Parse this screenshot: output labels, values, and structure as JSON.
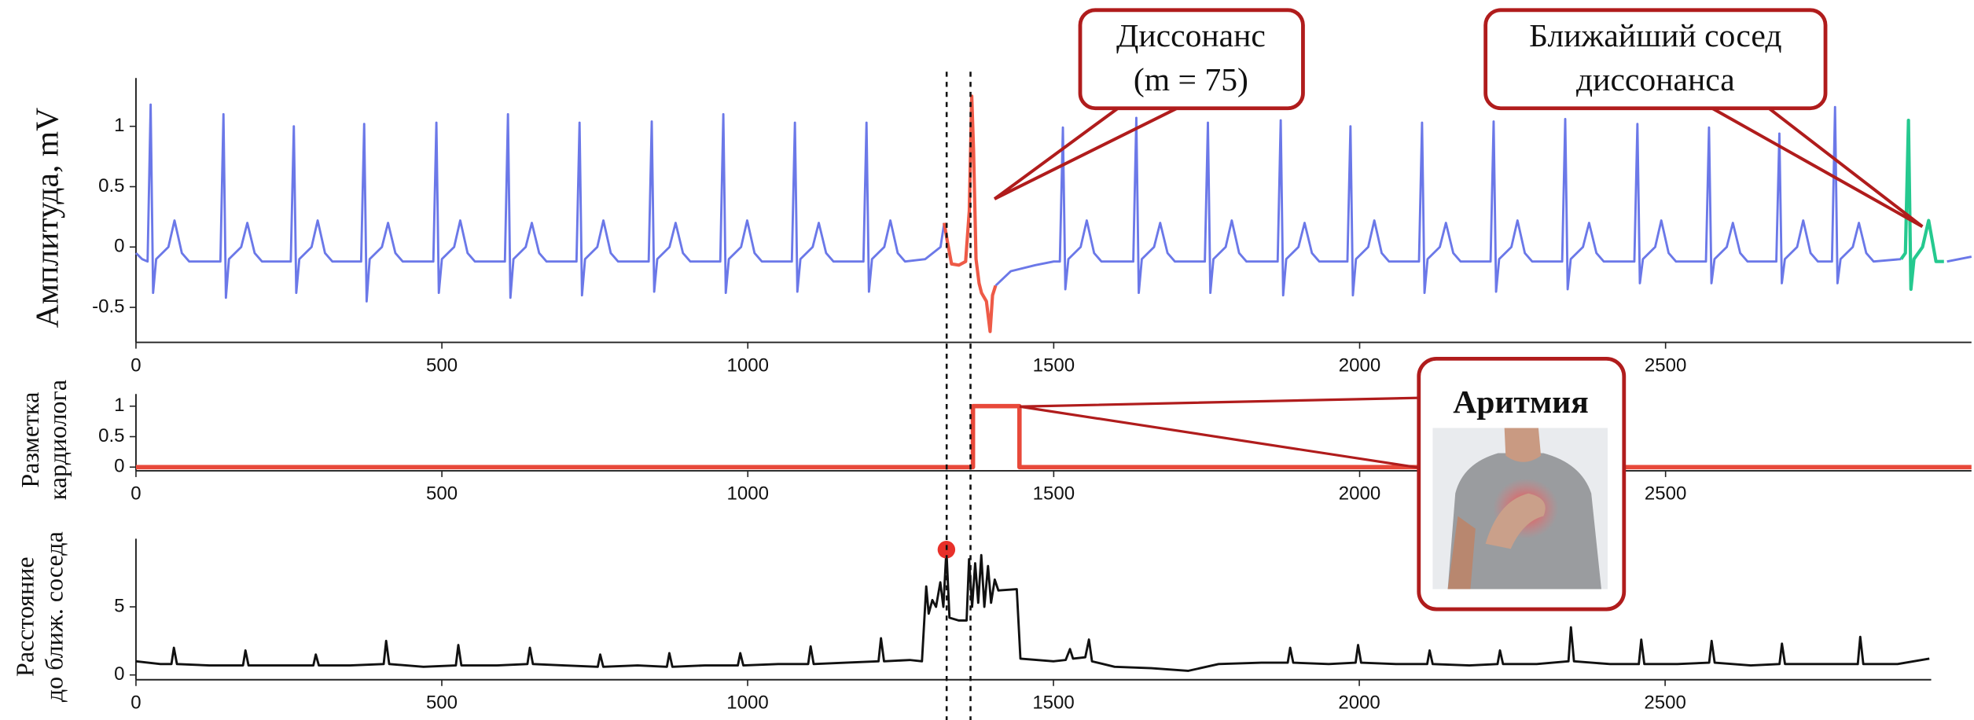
{
  "chart_data": [
    {
      "type": "line",
      "ylabel": [
        "Амплитуда, mV"
      ],
      "xlim": [
        0,
        3000
      ],
      "ylim": [
        -0.79,
        1.4
      ],
      "xticks": [
        0,
        500,
        1000,
        1500,
        2000,
        2500
      ],
      "yticks": [
        -0.5,
        0,
        0.5,
        1
      ],
      "series": [
        {
          "color": "#6b78e8",
          "x": [
            0,
            10,
            19,
            24,
            28,
            33,
            53,
            63,
            75,
            87,
            138,
            143,
            147,
            152,
            172,
            182,
            194,
            206,
            253,
            258,
            262,
            267,
            287,
            297,
            309,
            321,
            368,
            373,
            377,
            382,
            402,
            412,
            424,
            436,
            486,
            491,
            495,
            500,
            520,
            530,
            542,
            554,
            603,
            608,
            612,
            617,
            637,
            647,
            659,
            671,
            720,
            725,
            729,
            734,
            754,
            764,
            776,
            788,
            838,
            843,
            847,
            852,
            872,
            882,
            894,
            906,
            955,
            960,
            964,
            969,
            989,
            999,
            1011,
            1023,
            1072,
            1077,
            1081,
            1086,
            1106,
            1116,
            1128,
            1140,
            1189,
            1194,
            1198,
            1203,
            1223,
            1233,
            1245,
            1257,
            1290,
            1315,
            1321,
            null,
            1405,
            1430,
            1470,
            1500,
            1510,
            1515,
            1519,
            1524,
            1544,
            1554,
            1566,
            1578,
            1630,
            1635,
            1639,
            1644,
            1664,
            1674,
            1686,
            1698,
            1747,
            1752,
            1756,
            1761,
            1781,
            1791,
            1803,
            1815,
            1866,
            1871,
            1875,
            1880,
            1900,
            1910,
            1922,
            1934,
            1980,
            1985,
            1989,
            1994,
            2014,
            2024,
            2036,
            2048,
            2097,
            2102,
            2106,
            2111,
            2131,
            2141,
            2153,
            2165,
            2214,
            2219,
            2223,
            2228,
            2248,
            2258,
            2270,
            2282,
            2331,
            2336,
            2340,
            2345,
            2365,
            2375,
            2387,
            2399,
            2449,
            2454,
            2458,
            2463,
            2483,
            2493,
            2505,
            2517,
            2566,
            2571,
            2575,
            2580,
            2600,
            2610,
            2622,
            2634,
            2681,
            2686,
            2690,
            2695,
            2715,
            2725,
            2737,
            2749,
            2772,
            2777,
            2781,
            2786,
            2806,
            2816,
            2828,
            2840,
            2885,
            null,
            2960,
            3000
          ],
          "values": [
            -0.05,
            -0.1,
            -0.12,
            1.18,
            -0.38,
            -0.1,
            0,
            0.22,
            -0.05,
            -0.12,
            -0.12,
            1.1,
            -0.42,
            -0.1,
            0,
            0.2,
            -0.05,
            -0.12,
            -0.12,
            1.0,
            -0.38,
            -0.1,
            0,
            0.22,
            -0.05,
            -0.12,
            -0.12,
            1.02,
            -0.45,
            -0.1,
            0,
            0.2,
            -0.05,
            -0.12,
            -0.12,
            1.03,
            -0.38,
            -0.1,
            0,
            0.22,
            -0.05,
            -0.12,
            -0.12,
            1.1,
            -0.42,
            -0.1,
            0,
            0.2,
            -0.05,
            -0.12,
            -0.12,
            1.03,
            -0.4,
            -0.1,
            0,
            0.22,
            -0.05,
            -0.12,
            -0.12,
            1.04,
            -0.37,
            -0.1,
            0,
            0.2,
            -0.05,
            -0.12,
            -0.12,
            1.1,
            -0.38,
            -0.1,
            0,
            0.22,
            -0.05,
            -0.12,
            -0.12,
            1.03,
            -0.37,
            -0.1,
            0,
            0.2,
            -0.05,
            -0.12,
            -0.12,
            1.03,
            -0.37,
            -0.1,
            0,
            0.22,
            -0.05,
            -0.12,
            -0.1,
            0.0,
            0.2,
            null,
            -0.32,
            -0.2,
            -0.15,
            -0.12,
            -0.12,
            0.99,
            -0.35,
            -0.1,
            0,
            0.22,
            -0.05,
            -0.12,
            -0.12,
            1.07,
            -0.38,
            -0.1,
            0,
            0.2,
            -0.05,
            -0.12,
            -0.12,
            1.03,
            -0.38,
            -0.1,
            0,
            0.22,
            -0.05,
            -0.12,
            -0.12,
            1.05,
            -0.4,
            -0.1,
            0,
            0.2,
            -0.05,
            -0.12,
            -0.12,
            1.0,
            -0.4,
            -0.1,
            0,
            0.22,
            -0.05,
            -0.12,
            -0.12,
            1.03,
            -0.38,
            -0.1,
            0,
            0.2,
            -0.05,
            -0.12,
            -0.12,
            1.04,
            -0.37,
            -0.1,
            0,
            0.22,
            -0.05,
            -0.12,
            -0.12,
            1.06,
            -0.35,
            -0.1,
            0,
            0.2,
            -0.05,
            -0.12,
            -0.12,
            1.02,
            -0.3,
            -0.1,
            0,
            0.22,
            -0.05,
            -0.12,
            -0.12,
            0.99,
            -0.3,
            -0.1,
            0,
            0.2,
            -0.05,
            -0.12,
            -0.12,
            0.94,
            -0.3,
            -0.1,
            0,
            0.22,
            -0.05,
            -0.12,
            -0.12,
            1.16,
            -0.3,
            -0.1,
            0,
            0.2,
            -0.05,
            -0.12,
            -0.1,
            null,
            -0.12,
            -0.08
          ]
        },
        {
          "color": "#ee5a47",
          "x": [
            1321,
            1326,
            1333,
            1345,
            1356,
            1362,
            1366,
            1369,
            1373,
            1378,
            1382,
            1390,
            1396,
            1400,
            1405
          ],
          "values": [
            0.2,
            0.05,
            -0.14,
            -0.15,
            -0.12,
            0.3,
            1.25,
            0.8,
            -0.1,
            -0.3,
            -0.38,
            -0.45,
            -0.7,
            -0.4,
            -0.32
          ]
        },
        {
          "color": "#25c98f",
          "x": [
            2885,
            2892,
            2897,
            2901,
            2906,
            2920,
            2930,
            2942,
            2955
          ],
          "values": [
            -0.1,
            -0.05,
            1.05,
            -0.35,
            -0.1,
            0.0,
            0.22,
            -0.12,
            -0.12
          ]
        }
      ]
    },
    {
      "type": "line",
      "ylabel": [
        "Разметка",
        "кардиолога"
      ],
      "xlim": [
        0,
        3000
      ],
      "ylim": [
        -0.06,
        1.2
      ],
      "xticks": [
        0,
        500,
        1000,
        1500,
        2000,
        2500
      ],
      "yticks": [
        0,
        0.5,
        1
      ],
      "series": [
        {
          "color": "#e8493a",
          "x": [
            0,
            1368,
            1368,
            1444,
            1444,
            3000
          ],
          "values": [
            0,
            0,
            1,
            1,
            0,
            0
          ]
        }
      ]
    },
    {
      "type": "line",
      "ylabel": [
        "Расстояние",
        "до ближ. соседа"
      ],
      "xlim": [
        0,
        2935
      ],
      "ylim": [
        -0.35,
        10
      ],
      "xticks": [
        0,
        500,
        1000,
        1500,
        2000,
        2500
      ],
      "yticks": [
        0,
        5
      ],
      "series": [
        {
          "color": "#111111",
          "x": [
            0,
            40,
            58,
            62,
            67,
            120,
            175,
            179,
            184,
            240,
            290,
            294,
            299,
            350,
            405,
            409,
            414,
            470,
            523,
            527,
            532,
            590,
            640,
            644,
            649,
            700,
            755,
            759,
            764,
            820,
            868,
            872,
            877,
            930,
            984,
            988,
            993,
            1050,
            1099,
            1103,
            1108,
            1160,
            1214,
            1218,
            1223,
            1265,
            1285,
            1292,
            1296,
            1302,
            1308,
            1315,
            1320,
            1325,
            1330,
            1345,
            1358,
            1362,
            1367,
            1372,
            1377,
            1382,
            1387,
            1393,
            1398,
            1404,
            1410,
            1440,
            1446,
            1500,
            1520,
            1527,
            1532,
            1552,
            1558,
            1563,
            1600,
            1660,
            1720,
            1770,
            1840,
            1883,
            1887,
            1892,
            1950,
            1994,
            1998,
            2003,
            2060,
            2111,
            2115,
            2120,
            2180,
            2226,
            2230,
            2235,
            2290,
            2342,
            2346,
            2351,
            2410,
            2457,
            2461,
            2466,
            2520,
            2572,
            2576,
            2581,
            2640,
            2687,
            2691,
            2696,
            2760,
            2815,
            2819,
            2824,
            2880,
            2932
          ],
          "values": [
            1.0,
            0.8,
            0.8,
            2.0,
            0.8,
            0.7,
            0.7,
            1.8,
            0.7,
            0.7,
            0.7,
            1.5,
            0.7,
            0.7,
            0.8,
            2.5,
            0.8,
            0.6,
            0.7,
            2.2,
            0.7,
            0.7,
            0.8,
            2.0,
            0.8,
            0.7,
            0.6,
            1.5,
            0.6,
            0.7,
            0.6,
            1.6,
            0.6,
            0.7,
            0.7,
            1.6,
            0.7,
            0.8,
            0.8,
            2.1,
            0.8,
            0.9,
            1.0,
            2.7,
            1.0,
            1.1,
            1.0,
            6.5,
            4.5,
            5.5,
            5.0,
            6.8,
            5.0,
            9.2,
            4.2,
            4.0,
            4.0,
            8.5,
            5.0,
            8.2,
            5.3,
            8.8,
            5.0,
            8.0,
            5.3,
            7.0,
            6.2,
            6.3,
            1.2,
            1.0,
            1.1,
            1.9,
            1.2,
            1.3,
            2.6,
            1.0,
            0.6,
            0.5,
            0.3,
            0.8,
            0.9,
            0.9,
            2.0,
            0.9,
            0.8,
            0.9,
            2.2,
            0.9,
            0.8,
            0.8,
            1.8,
            0.8,
            0.7,
            0.8,
            1.8,
            0.8,
            0.8,
            1.0,
            3.5,
            1.0,
            0.8,
            0.8,
            2.6,
            0.8,
            0.8,
            0.9,
            2.5,
            0.9,
            0.7,
            0.8,
            2.3,
            0.8,
            0.8,
            0.8,
            2.8,
            0.8,
            0.8,
            1.2
          ]
        }
      ],
      "points": {
        "color": "#e8302a",
        "x": [
          1325
        ],
        "values": [
          9.2
        ]
      }
    }
  ],
  "vlines": [
    1325,
    1364
  ],
  "callouts": [
    {
      "lines": [
        "Диссонанс",
        "(m = 75)"
      ]
    },
    {
      "lines": [
        "Ближайший сосед",
        "диссонанса"
      ]
    },
    {
      "title": "Аритмия"
    }
  ]
}
